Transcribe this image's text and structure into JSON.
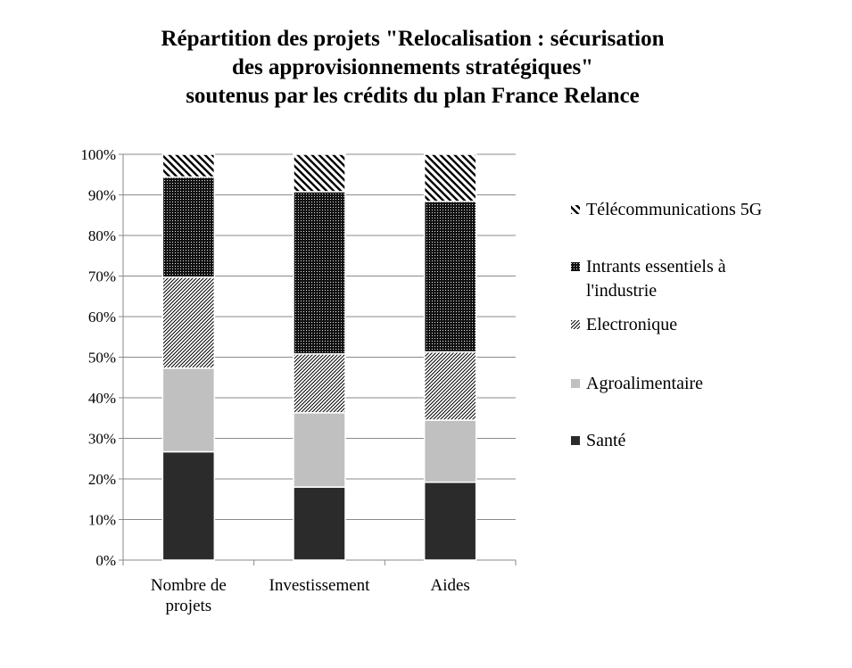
{
  "chart_data": {
    "type": "bar",
    "stacked": true,
    "percent": true,
    "title_lines": [
      "Répartition des projets \"Relocalisation  : sécurisation",
      "des approvisionnements stratégiques\"",
      "soutenus par les crédits du plan France Relance"
    ],
    "categories": [
      [
        "Nombre de",
        "projets"
      ],
      [
        "Investissement"
      ],
      [
        "Aides"
      ]
    ],
    "yticks": [
      "0%",
      "10%",
      "20%",
      "30%",
      "40%",
      "50%",
      "60%",
      "70%",
      "80%",
      "90%",
      "100%"
    ],
    "ylim": [
      0,
      100
    ],
    "grid": true,
    "legend_position": "right",
    "series": [
      {
        "name": "Santé",
        "values": [
          26.7,
          18.0,
          19.2
        ],
        "pattern": "solid-dark",
        "color": "#2b2b2b"
      },
      {
        "name": "Agroalimentaire",
        "values": [
          20.6,
          18.3,
          15.3
        ],
        "pattern": "solid-light",
        "color": "#c0c0c0"
      },
      {
        "name": "Electronique",
        "values": [
          22.4,
          14.5,
          16.8
        ],
        "pattern": "fine-diagonal",
        "color": "#000000"
      },
      {
        "name": "Intrants essentiels à l'industrie",
        "values": [
          24.7,
          40.0,
          37.1
        ],
        "pattern": "dense-dots",
        "color": "#000000"
      },
      {
        "name": "Télécommunications 5G",
        "values": [
          5.6,
          9.2,
          11.6
        ],
        "pattern": "wide-diagonal",
        "color": "#000000"
      }
    ],
    "legend_order": [
      4,
      3,
      2,
      1,
      0
    ],
    "legend_lines": [
      [
        "Télécommunications 5G"
      ],
      [
        "Intrants essentiels à",
        "l'industrie"
      ],
      [
        "Electronique"
      ],
      [
        "Agroalimentaire"
      ],
      [
        "Santé"
      ]
    ]
  }
}
